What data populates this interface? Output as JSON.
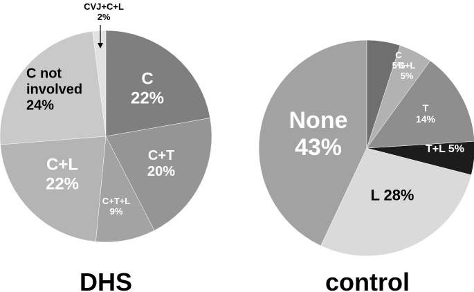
{
  "chart_data": [
    {
      "type": "pie",
      "title": "DHS",
      "categories": [
        "C",
        "C+T",
        "C+T+L",
        "C+L",
        "C not involved",
        "CVJ+C+L"
      ],
      "values": [
        22,
        20,
        9,
        22,
        24,
        2
      ],
      "value_labels": [
        "22%",
        "20%",
        "9%",
        "22%",
        "24%",
        "2%"
      ],
      "colors": [
        "#7f7f7f",
        "#959595",
        "#a3a3a3",
        "#b4b4b4",
        "#c9c9c9",
        "#e2e2e2"
      ]
    },
    {
      "type": "pie",
      "title": "control",
      "categories": [
        "C",
        "C+L",
        "T",
        "T+L",
        "L",
        "None"
      ],
      "values": [
        5,
        5,
        14,
        5,
        28,
        43
      ],
      "value_labels": [
        "5%",
        "5%",
        "14%",
        "5%",
        "28%",
        "43%"
      ],
      "colors": [
        "#6f6f6f",
        "#b2b2b2",
        "#8e8e8e",
        "#1c1c1c",
        "#dadada",
        "#a2a2a2"
      ]
    }
  ]
}
